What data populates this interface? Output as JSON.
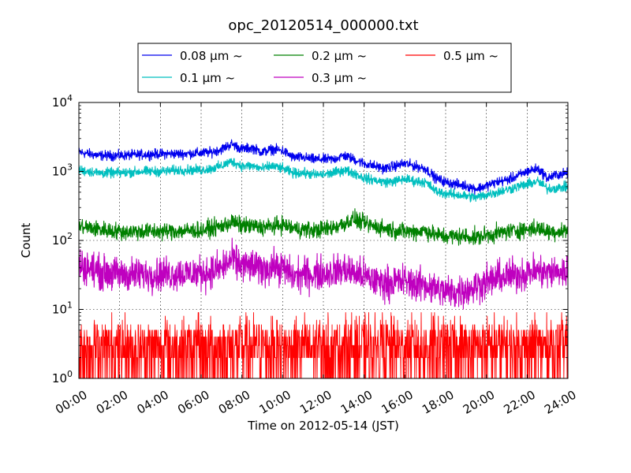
{
  "chart_data": {
    "type": "line",
    "title": "opc_20120514_000000.txt",
    "xlabel": "Time on 2012-05-14 (JST)",
    "ylabel": "Count",
    "x_unit": "hour",
    "xlim": [
      0,
      24
    ],
    "ylim": [
      1,
      10000
    ],
    "yscale": "log",
    "grid": true,
    "legend_position": "top, outside plot",
    "x_ticks": [
      {
        "value": 0,
        "label": "00:00"
      },
      {
        "value": 2,
        "label": "02:00"
      },
      {
        "value": 4,
        "label": "04:00"
      },
      {
        "value": 6,
        "label": "06:00"
      },
      {
        "value": 8,
        "label": "08:00"
      },
      {
        "value": 10,
        "label": "10:00"
      },
      {
        "value": 12,
        "label": "12:00"
      },
      {
        "value": 14,
        "label": "14:00"
      },
      {
        "value": 16,
        "label": "16:00"
      },
      {
        "value": 18,
        "label": "18:00"
      },
      {
        "value": 20,
        "label": "20:00"
      },
      {
        "value": 22,
        "label": "22:00"
      },
      {
        "value": 24,
        "label": "24:00"
      }
    ],
    "y_ticks": [
      {
        "value": 1,
        "base": "10",
        "exp": "0"
      },
      {
        "value": 10,
        "base": "10",
        "exp": "1"
      },
      {
        "value": 100,
        "base": "10",
        "exp": "2"
      },
      {
        "value": 1000,
        "base": "10",
        "exp": "3"
      },
      {
        "value": 10000,
        "base": "10",
        "exp": "4"
      }
    ],
    "x": [
      0,
      1,
      2,
      3,
      4,
      5,
      6,
      6.5,
      7,
      7.5,
      8,
      8.5,
      9,
      9.5,
      10,
      10.5,
      11,
      11.5,
      12,
      12.5,
      13,
      13.5,
      14,
      14.5,
      15,
      15.5,
      16,
      16.5,
      17,
      17.5,
      18,
      18.5,
      19,
      19.5,
      20,
      20.5,
      21,
      21.5,
      22,
      22.5,
      23,
      23.5,
      24
    ],
    "series": [
      {
        "name": "0.08 μm ~",
        "color": "#0000ee",
        "values": [
          1900,
          1700,
          1700,
          1750,
          1800,
          1800,
          1850,
          1900,
          2100,
          2500,
          2100,
          2200,
          1900,
          2100,
          2000,
          1600,
          1600,
          1500,
          1500,
          1500,
          1700,
          1500,
          1300,
          1200,
          1100,
          1200,
          1300,
          1200,
          1100,
          800,
          700,
          650,
          620,
          560,
          620,
          700,
          750,
          850,
          1000,
          1100,
          800,
          900,
          950
        ]
      },
      {
        "name": "0.1 μm ~",
        "color": "#00bfbf",
        "values": [
          1050,
          950,
          950,
          1000,
          1000,
          1050,
          1050,
          1100,
          1200,
          1400,
          1200,
          1200,
          1100,
          1200,
          1100,
          950,
          950,
          900,
          900,
          950,
          1050,
          950,
          800,
          750,
          700,
          720,
          780,
          720,
          700,
          520,
          480,
          460,
          440,
          420,
          460,
          500,
          540,
          600,
          650,
          720,
          560,
          580,
          600
        ]
      },
      {
        "name": "0.2 μm ~",
        "color": "#008000",
        "values": [
          160,
          145,
          135,
          135,
          135,
          138,
          140,
          150,
          160,
          185,
          165,
          160,
          155,
          160,
          170,
          150,
          145,
          140,
          145,
          155,
          175,
          205,
          175,
          160,
          150,
          140,
          135,
          135,
          140,
          120,
          115,
          115,
          115,
          110,
          120,
          125,
          135,
          140,
          145,
          150,
          135,
          135,
          140
        ]
      },
      {
        "name": "0.3 μm ~",
        "color": "#bf00bf",
        "values": [
          45,
          35,
          32,
          32,
          33,
          33,
          34,
          35,
          40,
          52,
          44,
          42,
          38,
          42,
          40,
          30,
          32,
          32,
          34,
          35,
          38,
          34,
          30,
          26,
          24,
          25,
          26,
          23,
          23,
          20,
          18,
          18,
          19,
          22,
          25,
          28,
          30,
          32,
          34,
          36,
          34,
          35,
          35
        ]
      },
      {
        "name": "0.5 μm ~",
        "color": "#ff0000",
        "values": [
          3,
          3,
          3,
          3,
          3,
          3,
          3,
          3,
          3,
          4,
          3,
          3,
          3,
          3,
          3,
          3,
          3,
          3,
          3,
          3,
          3,
          3,
          3,
          3,
          3,
          3,
          3,
          3,
          3,
          3,
          3,
          3,
          3,
          3,
          3,
          3,
          3,
          3,
          3,
          3,
          3,
          3,
          3
        ]
      }
    ]
  }
}
